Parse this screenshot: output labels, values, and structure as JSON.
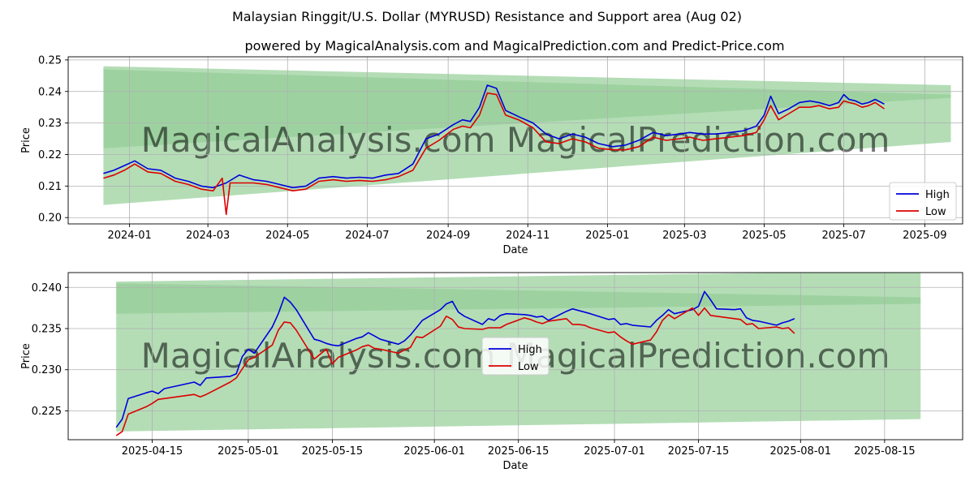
{
  "title": "Malaysian Ringgit/U.S. Dollar (MYRUSD) Resistance and Support area (Aug 02)",
  "subtitle": "powered by MagicalAnalysis.com and MagicalPrediction.com and Predict-Price.com",
  "watermark": "MagicalAnalysis.com    MagicalPrediction.com",
  "colors": {
    "high": "#0000dd",
    "low": "#dd0000",
    "band": "#4caf50",
    "grid": "#b0b0b0"
  },
  "chart_data": [
    {
      "type": "line",
      "panel": "top",
      "xlabel": "Date",
      "ylabel": "Price",
      "legend": {
        "position": "lower-right",
        "entries": [
          "High",
          "Low"
        ]
      },
      "grid": true,
      "xlim": [
        "2023-11-15",
        "2025-09-30"
      ],
      "ylim": [
        0.198,
        0.251
      ],
      "x_ticks": [
        "2024-01-01",
        "2024-03-01",
        "2024-05-01",
        "2024-07-01",
        "2024-09-01",
        "2024-11-01",
        "2025-01-01",
        "2025-03-01",
        "2025-05-01",
        "2025-07-01",
        "2025-09-01"
      ],
      "x_tick_labels": [
        "2024-01",
        "2024-03",
        "2024-05",
        "2024-07",
        "2024-09",
        "2024-11",
        "2025-01",
        "2025-03",
        "2025-05",
        "2025-07",
        "2025-09"
      ],
      "y_ticks": [
        0.2,
        0.21,
        0.22,
        0.23,
        0.24,
        0.25
      ],
      "y_tick_labels": [
        "0.20",
        "0.21",
        "0.22",
        "0.23",
        "0.24",
        "0.25"
      ],
      "bands": [
        {
          "name": "outer-band",
          "x": [
            "2023-12-12",
            "2025-09-21"
          ],
          "upper": [
            0.248,
            0.242
          ],
          "lower": [
            0.204,
            0.224
          ]
        },
        {
          "name": "resistance-band",
          "x": [
            "2023-12-12",
            "2025-09-21"
          ],
          "upper": [
            0.247,
            0.239
          ],
          "lower": [
            0.222,
            0.238
          ]
        },
        {
          "name": "support-band",
          "x": [
            "2023-12-12",
            "2025-09-21"
          ],
          "upper": [
            0.205,
            0.227
          ],
          "lower": [
            0.205,
            0.227
          ]
        }
      ],
      "series": [
        {
          "name": "High",
          "x": [
            "2023-12-12",
            "2023-12-20",
            "2023-12-28",
            "2024-01-05",
            "2024-01-15",
            "2024-01-25",
            "2024-02-05",
            "2024-02-15",
            "2024-02-25",
            "2024-03-05",
            "2024-03-15",
            "2024-03-25",
            "2024-04-05",
            "2024-04-15",
            "2024-04-25",
            "2024-05-05",
            "2024-05-15",
            "2024-05-25",
            "2024-06-05",
            "2024-06-15",
            "2024-06-25",
            "2024-07-05",
            "2024-07-15",
            "2024-07-25",
            "2024-08-05",
            "2024-08-15",
            "2024-08-25",
            "2024-09-05",
            "2024-09-12",
            "2024-09-18",
            "2024-09-25",
            "2024-10-01",
            "2024-10-08",
            "2024-10-15",
            "2024-10-25",
            "2024-11-05",
            "2024-11-15",
            "2024-11-25",
            "2024-12-05",
            "2024-12-15",
            "2024-12-25",
            "2025-01-05",
            "2025-01-15",
            "2025-01-25",
            "2025-02-05",
            "2025-02-15",
            "2025-02-25",
            "2025-03-05",
            "2025-03-15",
            "2025-03-25",
            "2025-04-05",
            "2025-04-15",
            "2025-04-25",
            "2025-05-01",
            "2025-05-06",
            "2025-05-12",
            "2025-05-20",
            "2025-05-28",
            "2025-06-05",
            "2025-06-12",
            "2025-06-20",
            "2025-06-27",
            "2025-07-01",
            "2025-07-05",
            "2025-07-10",
            "2025-07-15",
            "2025-07-20",
            "2025-07-25",
            "2025-08-01"
          ],
          "y": [
            0.214,
            0.215,
            0.2165,
            0.218,
            0.2155,
            0.215,
            0.2125,
            0.2115,
            0.21,
            0.2095,
            0.211,
            0.2135,
            0.212,
            0.2115,
            0.2105,
            0.2095,
            0.21,
            0.2125,
            0.213,
            0.2125,
            0.2128,
            0.2125,
            0.2135,
            0.214,
            0.217,
            0.225,
            0.2265,
            0.2295,
            0.231,
            0.2305,
            0.235,
            0.242,
            0.241,
            0.234,
            0.232,
            0.23,
            0.2265,
            0.225,
            0.2265,
            0.2255,
            0.2235,
            0.2225,
            0.223,
            0.2245,
            0.227,
            0.226,
            0.2265,
            0.227,
            0.2265,
            0.2265,
            0.227,
            0.2275,
            0.229,
            0.2325,
            0.2385,
            0.233,
            0.2345,
            0.2365,
            0.237,
            0.2365,
            0.2355,
            0.2365,
            0.239,
            0.2375,
            0.237,
            0.236,
            0.2365,
            0.2375,
            0.236
          ]
        },
        {
          "name": "Low",
          "x": [
            "2023-12-12",
            "2023-12-20",
            "2023-12-28",
            "2024-01-05",
            "2024-01-15",
            "2024-01-25",
            "2024-02-05",
            "2024-02-15",
            "2024-02-25",
            "2024-03-05",
            "2024-03-12",
            "2024-03-15",
            "2024-03-18",
            "2024-03-25",
            "2024-04-05",
            "2024-04-15",
            "2024-04-25",
            "2024-05-05",
            "2024-05-15",
            "2024-05-25",
            "2024-06-05",
            "2024-06-15",
            "2024-06-25",
            "2024-07-05",
            "2024-07-15",
            "2024-07-25",
            "2024-08-05",
            "2024-08-15",
            "2024-08-25",
            "2024-09-05",
            "2024-09-12",
            "2024-09-18",
            "2024-09-25",
            "2024-10-01",
            "2024-10-08",
            "2024-10-15",
            "2024-10-25",
            "2024-11-05",
            "2024-11-15",
            "2024-11-25",
            "2024-12-05",
            "2024-12-15",
            "2024-12-25",
            "2025-01-05",
            "2025-01-15",
            "2025-01-25",
            "2025-02-05",
            "2025-02-15",
            "2025-02-25",
            "2025-03-05",
            "2025-03-15",
            "2025-03-25",
            "2025-04-05",
            "2025-04-15",
            "2025-04-25",
            "2025-05-01",
            "2025-05-06",
            "2025-05-12",
            "2025-05-20",
            "2025-05-28",
            "2025-06-05",
            "2025-06-12",
            "2025-06-20",
            "2025-06-27",
            "2025-07-01",
            "2025-07-05",
            "2025-07-10",
            "2025-07-15",
            "2025-07-20",
            "2025-07-25",
            "2025-08-01"
          ],
          "y": [
            0.2125,
            0.2135,
            0.215,
            0.217,
            0.2145,
            0.214,
            0.2115,
            0.2105,
            0.209,
            0.2085,
            0.2125,
            0.201,
            0.211,
            0.211,
            0.211,
            0.2105,
            0.2095,
            0.2085,
            0.209,
            0.2115,
            0.212,
            0.2115,
            0.2118,
            0.2115,
            0.212,
            0.213,
            0.215,
            0.222,
            0.2245,
            0.228,
            0.229,
            0.2285,
            0.2325,
            0.2395,
            0.239,
            0.2325,
            0.231,
            0.2285,
            0.224,
            0.2235,
            0.225,
            0.224,
            0.222,
            0.2215,
            0.2215,
            0.2225,
            0.2255,
            0.2245,
            0.225,
            0.2255,
            0.2245,
            0.225,
            0.2255,
            0.226,
            0.227,
            0.231,
            0.2355,
            0.231,
            0.233,
            0.235,
            0.235,
            0.2355,
            0.2345,
            0.235,
            0.237,
            0.2365,
            0.236,
            0.235,
            0.2355,
            0.2365,
            0.2345
          ]
        }
      ]
    },
    {
      "type": "line",
      "panel": "bottom",
      "xlabel": "Date",
      "ylabel": "Price",
      "legend": {
        "position": "center",
        "entries": [
          "High",
          "Low"
        ]
      },
      "grid": true,
      "xlim": [
        "2025-04-01",
        "2025-08-28"
      ],
      "ylim": [
        0.2215,
        0.2418
      ],
      "x_ticks": [
        "2025-04-15",
        "2025-05-01",
        "2025-05-15",
        "2025-06-01",
        "2025-06-15",
        "2025-07-01",
        "2025-07-15",
        "2025-08-01",
        "2025-08-15"
      ],
      "x_tick_labels": [
        "2025-04-15",
        "2025-05-01",
        "2025-05-15",
        "2025-06-01",
        "2025-06-15",
        "2025-07-01",
        "2025-07-15",
        "2025-08-01",
        "2025-08-15"
      ],
      "y_ticks": [
        0.225,
        0.23,
        0.235,
        0.24
      ],
      "y_tick_labels": [
        "0.225",
        "0.230",
        "0.235",
        "0.240"
      ],
      "bands": [
        {
          "name": "outer-band",
          "x": [
            "2025-04-09",
            "2025-08-21"
          ],
          "upper": [
            0.2407,
            0.242
          ],
          "lower": [
            0.2225,
            0.224
          ]
        },
        {
          "name": "resistance-band",
          "x": [
            "2025-04-09",
            "2025-08-21"
          ],
          "upper": [
            0.2405,
            0.2388
          ],
          "lower": [
            0.2368,
            0.238
          ]
        },
        {
          "name": "support-band",
          "x": [
            "2025-04-09",
            "2025-08-21"
          ],
          "upper": [
            0.2225,
            0.2272
          ],
          "lower": [
            0.2225,
            0.2272
          ]
        }
      ],
      "series": [
        {
          "name": "High",
          "x": [
            "2025-04-09",
            "2025-04-10",
            "2025-04-11",
            "2025-04-14",
            "2025-04-15",
            "2025-04-16",
            "2025-04-17",
            "2025-04-22",
            "2025-04-23",
            "2025-04-24",
            "2025-04-28",
            "2025-04-29",
            "2025-04-30",
            "2025-05-01",
            "2025-05-02",
            "2025-05-05",
            "2025-05-06",
            "2025-05-07",
            "2025-05-08",
            "2025-05-09",
            "2025-05-12",
            "2025-05-13",
            "2025-05-14",
            "2025-05-15",
            "2025-05-16",
            "2025-05-19",
            "2025-05-20",
            "2025-05-21",
            "2025-05-22",
            "2025-05-23",
            "2025-05-26",
            "2025-05-27",
            "2025-05-28",
            "2025-05-29",
            "2025-05-30",
            "2025-06-02",
            "2025-06-03",
            "2025-06-04",
            "2025-06-05",
            "2025-06-06",
            "2025-06-09",
            "2025-06-10",
            "2025-06-11",
            "2025-06-12",
            "2025-06-13",
            "2025-06-16",
            "2025-06-17",
            "2025-06-18",
            "2025-06-19",
            "2025-06-20",
            "2025-06-23",
            "2025-06-24",
            "2025-06-25",
            "2025-06-26",
            "2025-06-27",
            "2025-06-30",
            "2025-07-01",
            "2025-07-02",
            "2025-07-03",
            "2025-07-04",
            "2025-07-07",
            "2025-07-08",
            "2025-07-09",
            "2025-07-10",
            "2025-07-11",
            "2025-07-14",
            "2025-07-15",
            "2025-07-16",
            "2025-07-17",
            "2025-07-18",
            "2025-07-21",
            "2025-07-22",
            "2025-07-23",
            "2025-07-24",
            "2025-07-25",
            "2025-07-28",
            "2025-07-29",
            "2025-07-30",
            "2025-07-31"
          ],
          "y": [
            0.223,
            0.224,
            0.2265,
            0.2272,
            0.2274,
            0.2271,
            0.2277,
            0.2285,
            0.2281,
            0.229,
            0.2292,
            0.2295,
            0.2316,
            0.2325,
            0.232,
            0.2352,
            0.2368,
            0.2388,
            0.2382,
            0.2373,
            0.2337,
            0.2335,
            0.2332,
            0.233,
            0.2329,
            0.2338,
            0.234,
            0.2345,
            0.2341,
            0.2337,
            0.2331,
            0.2335,
            0.2342,
            0.2351,
            0.236,
            0.2373,
            0.238,
            0.2383,
            0.237,
            0.2365,
            0.2355,
            0.2362,
            0.236,
            0.2366,
            0.2368,
            0.2367,
            0.2366,
            0.2364,
            0.2365,
            0.236,
            0.2371,
            0.2374,
            0.2372,
            0.237,
            0.2368,
            0.2361,
            0.2362,
            0.2355,
            0.2356,
            0.2354,
            0.2352,
            0.236,
            0.2366,
            0.2373,
            0.2368,
            0.2373,
            0.2377,
            0.2395,
            0.2385,
            0.2374,
            0.2373,
            0.2374,
            0.2363,
            0.236,
            0.2359,
            0.2354,
            0.2357,
            0.2359,
            0.2362
          ]
        },
        {
          "name": "Low",
          "x": [
            "2025-04-09",
            "2025-04-10",
            "2025-04-11",
            "2025-04-14",
            "2025-04-15",
            "2025-04-16",
            "2025-04-17",
            "2025-04-22",
            "2025-04-23",
            "2025-04-24",
            "2025-04-28",
            "2025-04-29",
            "2025-04-30",
            "2025-05-01",
            "2025-05-02",
            "2025-05-05",
            "2025-05-06",
            "2025-05-07",
            "2025-05-08",
            "2025-05-09",
            "2025-05-12",
            "2025-05-13",
            "2025-05-14",
            "2025-05-15",
            "2025-05-16",
            "2025-05-19",
            "2025-05-20",
            "2025-05-21",
            "2025-05-22",
            "2025-05-23",
            "2025-05-26",
            "2025-05-27",
            "2025-05-28",
            "2025-05-29",
            "2025-05-30",
            "2025-06-02",
            "2025-06-03",
            "2025-06-04",
            "2025-06-05",
            "2025-06-06",
            "2025-06-09",
            "2025-06-10",
            "2025-06-11",
            "2025-06-12",
            "2025-06-13",
            "2025-06-16",
            "2025-06-17",
            "2025-06-18",
            "2025-06-19",
            "2025-06-20",
            "2025-06-23",
            "2025-06-24",
            "2025-06-25",
            "2025-06-26",
            "2025-06-27",
            "2025-06-30",
            "2025-07-01",
            "2025-07-02",
            "2025-07-03",
            "2025-07-04",
            "2025-07-07",
            "2025-07-08",
            "2025-07-09",
            "2025-07-10",
            "2025-07-11",
            "2025-07-14",
            "2025-07-15",
            "2025-07-16",
            "2025-07-17",
            "2025-07-18",
            "2025-07-21",
            "2025-07-22",
            "2025-07-23",
            "2025-07-24",
            "2025-07-25",
            "2025-07-28",
            "2025-07-29",
            "2025-07-30",
            "2025-07-31"
          ],
          "y": [
            0.222,
            0.2225,
            0.2246,
            0.2255,
            0.2259,
            0.2264,
            0.2265,
            0.227,
            0.2267,
            0.227,
            0.2285,
            0.229,
            0.2301,
            0.2312,
            0.2315,
            0.233,
            0.2348,
            0.2358,
            0.2357,
            0.2348,
            0.2313,
            0.2319,
            0.2325,
            0.2307,
            0.2315,
            0.2324,
            0.2328,
            0.233,
            0.2326,
            0.2325,
            0.232,
            0.2324,
            0.2327,
            0.234,
            0.2339,
            0.2353,
            0.2365,
            0.2361,
            0.2352,
            0.235,
            0.2349,
            0.2351,
            0.2351,
            0.2351,
            0.2355,
            0.2363,
            0.2361,
            0.2358,
            0.2356,
            0.2359,
            0.2362,
            0.2355,
            0.2355,
            0.2354,
            0.2351,
            0.2345,
            0.2346,
            0.234,
            0.2335,
            0.2331,
            0.2336,
            0.2346,
            0.236,
            0.2367,
            0.2362,
            0.2375,
            0.2366,
            0.2375,
            0.2366,
            0.2365,
            0.2362,
            0.2361,
            0.2355,
            0.2356,
            0.235,
            0.2352,
            0.235,
            0.2351,
            0.2344
          ]
        }
      ]
    }
  ]
}
